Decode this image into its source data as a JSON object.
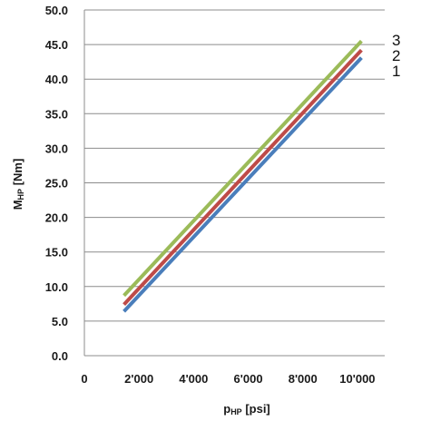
{
  "chart_data": {
    "type": "line",
    "x_ticks": [
      "0",
      "2'000",
      "4'000",
      "6'000",
      "8'000",
      "10'000"
    ],
    "y_ticks": [
      "0.0",
      "5.0",
      "10.0",
      "15.0",
      "20.0",
      "25.0",
      "30.0",
      "35.0",
      "40.0",
      "45.0",
      "50.0"
    ],
    "xlim": [
      0,
      11000
    ],
    "ylim": [
      0,
      50
    ],
    "grid": "horizontal",
    "xlabel": {
      "main": "p",
      "sub": "HP",
      "unit": " [psi]"
    },
    "ylabel": {
      "main": "M",
      "sub": "HP",
      "unit": " [Nm]"
    },
    "series": [
      {
        "name": "1",
        "color": "#4a7ebb",
        "x": [
          1450,
          10150
        ],
        "y": [
          6.4,
          43.1
        ]
      },
      {
        "name": "2",
        "color": "#be4b48",
        "x": [
          1450,
          10150
        ],
        "y": [
          7.4,
          44.2
        ]
      },
      {
        "name": "3",
        "color": "#9bbb59",
        "x": [
          1450,
          10150
        ],
        "y": [
          8.7,
          45.5
        ]
      }
    ]
  }
}
